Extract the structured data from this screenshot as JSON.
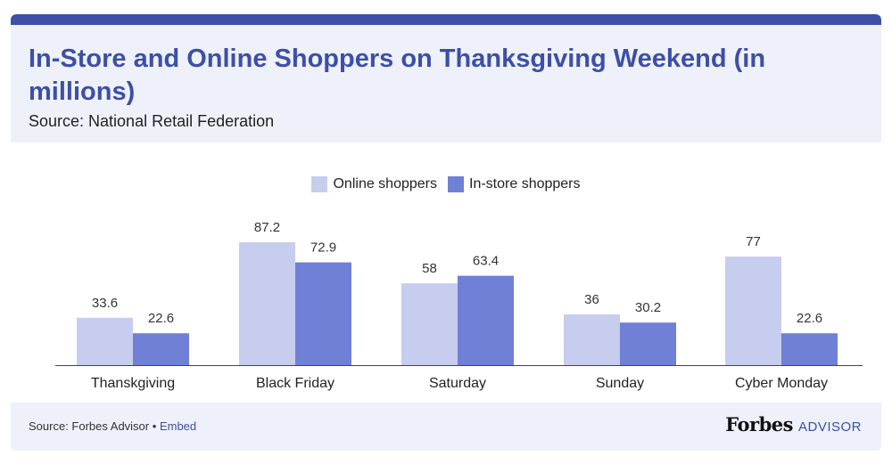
{
  "header": {
    "title": "In-Store and Online Shoppers on Thanksgiving Weekend (in millions)",
    "subtitle": "Source: National Retail Federation"
  },
  "footer": {
    "source_label": "Source: Forbes Advisor",
    "separator": "•",
    "embed_label": "Embed",
    "brand_name": "Forbes",
    "brand_suffix": "ADVISOR"
  },
  "colors": {
    "brand_blue": "#3d4fa6",
    "online": "#c7cdef",
    "instore": "#6f80d6"
  },
  "chart_data": {
    "type": "bar",
    "title": "In-Store and Online Shoppers on Thanksgiving Weekend (in millions)",
    "xlabel": "",
    "ylabel": "",
    "ylim": [
      0,
      100
    ],
    "grid": false,
    "legend_position": "top-center",
    "categories": [
      "Thanksgiving",
      "Black Friday",
      "Saturday",
      "Sunday",
      "Cyber Monday"
    ],
    "category_labels": [
      "Thanskgiving",
      "Black Friday",
      "Saturday",
      "Sunday",
      "Cyber Monday"
    ],
    "series": [
      {
        "name": "Online shoppers",
        "values": [
          33.6,
          87.2,
          58,
          36,
          77
        ],
        "labels": [
          "33.6",
          "87.2",
          "58",
          "36",
          "77"
        ],
        "color": "#c7cdef"
      },
      {
        "name": "In-store shoppers",
        "values": [
          22.6,
          72.9,
          63.4,
          30.2,
          22.6
        ],
        "labels": [
          "22.6",
          "72.9",
          "63.4",
          "30.2",
          "22.6"
        ],
        "color": "#6f80d6"
      }
    ]
  }
}
